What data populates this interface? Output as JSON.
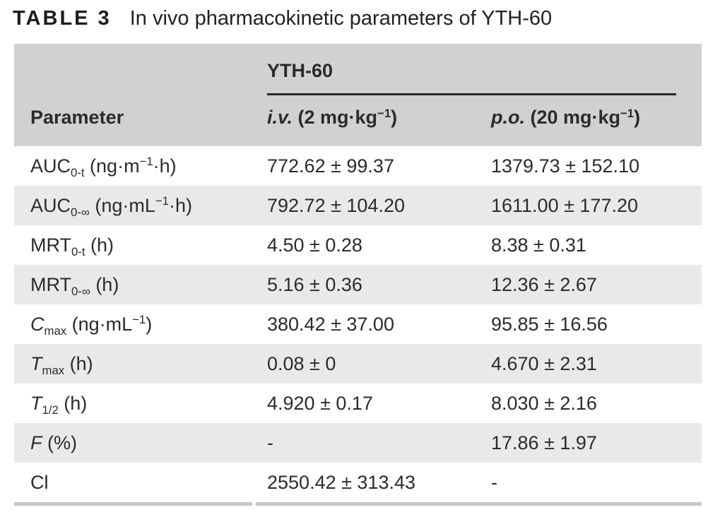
{
  "title": {
    "label": "TABLE 3",
    "text": "In vivo pharmacokinetic parameters of YTH-60"
  },
  "table": {
    "group_header": "YTH-60",
    "columns": {
      "parameter": "Parameter",
      "iv": "*i.v.* (2 mg·kg^−1^)",
      "po": "*p.o.* (20 mg·kg^−1^)"
    },
    "rows": [
      {
        "parameter": "AUC~0-t~ (ng·m^−1^·h)",
        "iv": "772.62 ± 99.37",
        "po": "1379.73 ± 152.10"
      },
      {
        "parameter": "AUC~0-∞~ (ng·mL^−1^·h)",
        "iv": "792.72 ± 104.20",
        "po": "1611.00 ± 177.20"
      },
      {
        "parameter": "MRT~0-t~ (h)",
        "iv": "4.50 ± 0.28",
        "po": "8.38 ± 0.31"
      },
      {
        "parameter": "MRT~0-∞~ (h)",
        "iv": "5.16 ± 0.36",
        "po": "12.36 ± 2.67"
      },
      {
        "parameter": "*C*~max~ (ng·mL^−1^)",
        "iv": "380.42 ± 37.00",
        "po": "95.85 ± 16.56"
      },
      {
        "parameter": "*T*~max~ (h)",
        "iv": "0.08 ± 0",
        "po": "4.670 ± 2.31"
      },
      {
        "parameter": "*T*~1/2~ (h)",
        "iv": "4.920 ± 0.17",
        "po": "8.030 ± 2.16"
      },
      {
        "parameter": "*F* (%)",
        "iv": "-",
        "po": "17.86 ± 1.97"
      },
      {
        "parameter": "Cl",
        "iv": "2550.42 ± 313.43",
        "po": "-"
      }
    ]
  },
  "colors": {
    "header_bg": "#d1d1d3",
    "stripe_bg": "#e9e9eb",
    "group_rule": "#282828",
    "bottom_rule": "#c6c6c8",
    "text": "#2b2b2b"
  }
}
